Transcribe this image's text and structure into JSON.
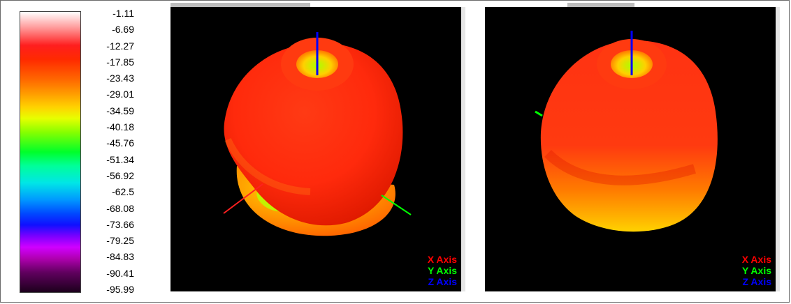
{
  "color_scale": {
    "labels": [
      "-1.11",
      "-6.69",
      "-12.27",
      "-17.85",
      "-23.43",
      "-29.01",
      "-34.59",
      "-40.18",
      "-45.76",
      "-51.34",
      "-56.92",
      "-62.5",
      "-68.08",
      "-73.66",
      "-79.25",
      "-84.83",
      "-90.41",
      "-95.99"
    ]
  },
  "views": [
    {
      "legend": {
        "x": "X Axis",
        "y": "Y Axis",
        "z": "Z Axis"
      }
    },
    {
      "legend": {
        "x": "X Axis",
        "y": "Y Axis",
        "z": "Z Axis"
      }
    }
  ],
  "colors": {
    "x_axis": "#ff0000",
    "y_axis": "#00ff00",
    "z_axis": "#0000ff",
    "background": "#000000"
  }
}
